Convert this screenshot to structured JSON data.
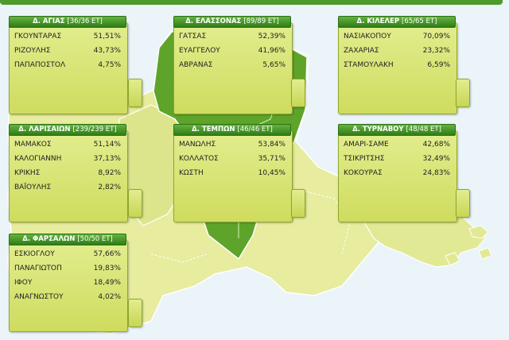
{
  "panels": [
    {
      "name": "Δ. ΑΓΙΑΣ",
      "count": "[36/36 ΕΤ]",
      "rows": [
        {
          "candidate": "ΓΚΟΥΝΤΑΡΑΣ",
          "percent": "51,51%"
        },
        {
          "candidate": "ΡΙΖΟΥΛΗΣ",
          "percent": "43,73%"
        },
        {
          "candidate": "ΠΑΠΑΠΟΣΤΟΛ",
          "percent": "4,75%"
        }
      ]
    },
    {
      "name": "Δ. ΕΛΑΣΣΟΝΑΣ",
      "count": "[89/89 ΕΤ]",
      "rows": [
        {
          "candidate": "ΓΑΤΣΑΣ",
          "percent": "52,39%"
        },
        {
          "candidate": "ΕΥΑΓΓΕΛΟΥ",
          "percent": "41,96%"
        },
        {
          "candidate": "ΑΒΡΑΝΑΣ",
          "percent": "5,65%"
        }
      ]
    },
    {
      "name": "Δ. ΚΙΛΕΛΕΡ",
      "count": "[65/65 ΕΤ]",
      "rows": [
        {
          "candidate": "ΝΑΣΙΑΚΟΠΟΥ",
          "percent": "70,09%"
        },
        {
          "candidate": "ΖΑΧΑΡΙΑΣ",
          "percent": "23,32%"
        },
        {
          "candidate": "ΣΤΑΜΟΥΛΑΚΗ",
          "percent": "6,59%"
        }
      ]
    },
    {
      "name": "Δ. ΛΑΡΙΣΑΙΩΝ",
      "count": "[239/239 ΕΤ]",
      "rows": [
        {
          "candidate": "ΜΑΜΑΚΟΣ",
          "percent": "51,14%"
        },
        {
          "candidate": "ΚΑΛΟΓΙΑΝΝΗ",
          "percent": "37,13%"
        },
        {
          "candidate": "ΚΡΙΚΗΣ",
          "percent": "8,92%"
        },
        {
          "candidate": "ΒΑΪΟΥΛΗΣ",
          "percent": "2,82%"
        }
      ]
    },
    {
      "name": "Δ. ΤΕΜΠΩΝ",
      "count": "[46/46 ΕΤ]",
      "rows": [
        {
          "candidate": "ΜΑΝΩΛΗΣ",
          "percent": "53,84%"
        },
        {
          "candidate": "ΚΟΛΛΑΤΟΣ",
          "percent": "35,71%"
        },
        {
          "candidate": "ΚΩΣΤΗ",
          "percent": "10,45%"
        }
      ]
    },
    {
      "name": "Δ. ΤΥΡΝΑΒΟΥ",
      "count": "[48/48 ΕΤ]",
      "rows": [
        {
          "candidate": "ΑΜΑΡΙ-ΣΑΜΕ",
          "percent": "42,68%"
        },
        {
          "candidate": "ΤΣΙΚΡΙΤΣΗΣ",
          "percent": "32,49%"
        },
        {
          "candidate": "ΚΟΚΟΥΡΑΣ",
          "percent": "24,83%"
        }
      ]
    },
    {
      "name": "Δ. ΦΑΡΣΑΛΩΝ",
      "count": "[50/50 ΕΤ]",
      "rows": [
        {
          "candidate": "ΕΣΚΙΟΓΛΟΥ",
          "percent": "57,66%"
        },
        {
          "candidate": "ΠΑΝΑΓΙΩΤΟΠ",
          "percent": "19,83%"
        },
        {
          "candidate": "ΙΦΟΥ",
          "percent": "18,49%"
        },
        {
          "candidate": "ΑΝΑΓΝΩΣΤΟΥ",
          "percent": "4,02%"
        }
      ]
    }
  ],
  "colors": {
    "region_fill": "#e4eb9a",
    "region_highlight": "#5ea42a",
    "panel_header": "#3f8d22"
  }
}
